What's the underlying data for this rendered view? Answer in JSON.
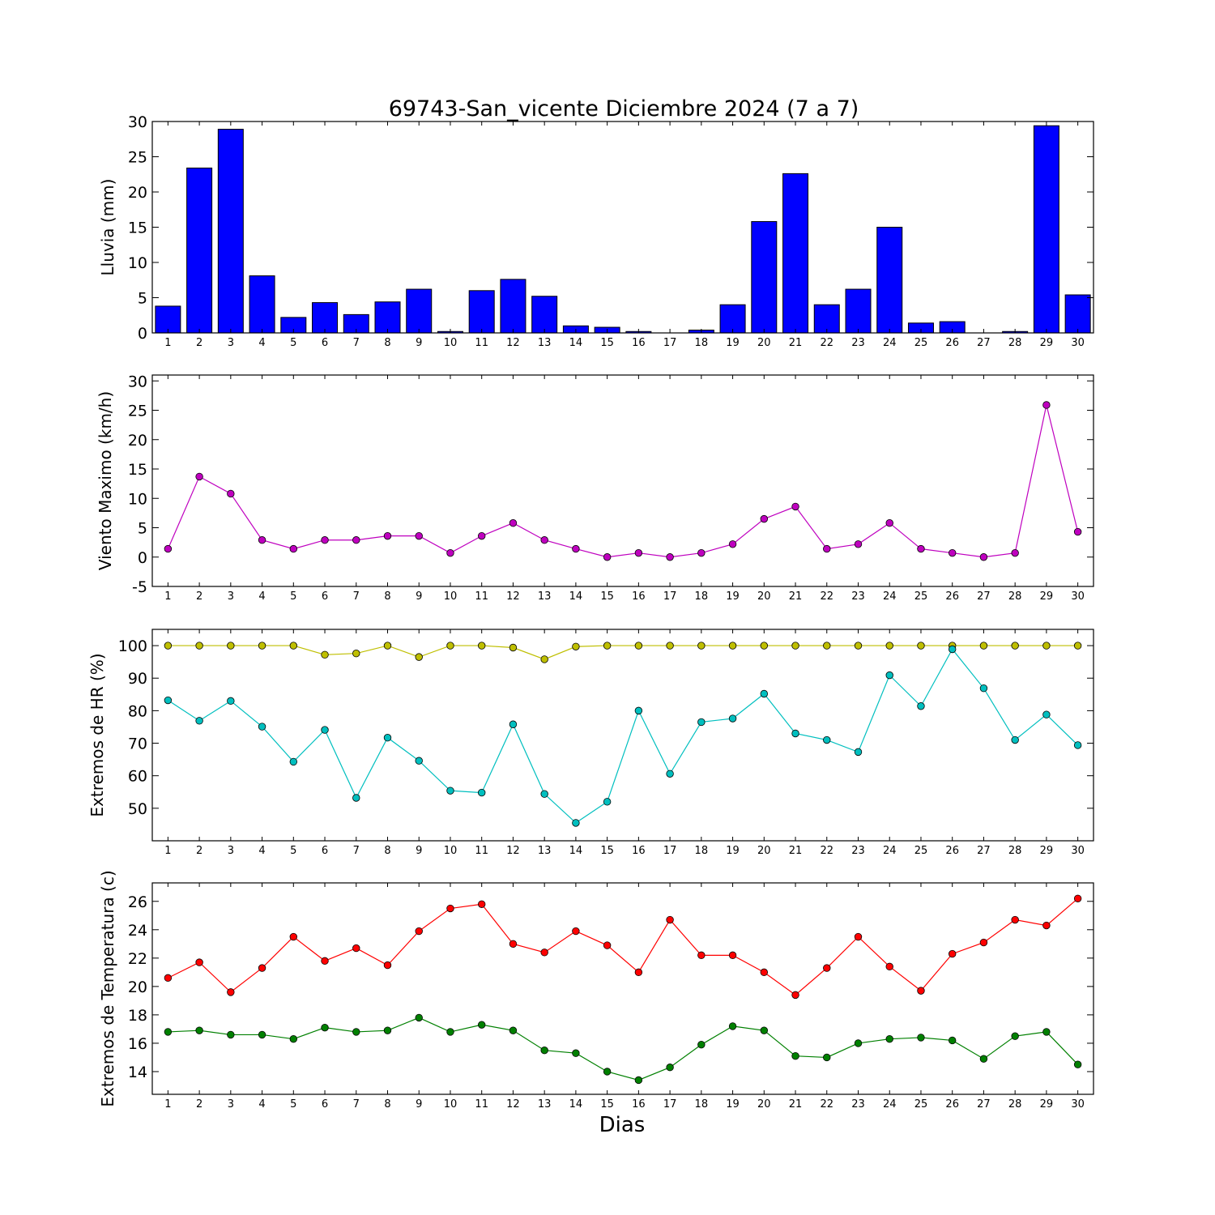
{
  "chart_data": {
    "title": "69743-San_vicente Diciembre 2024  (7 a 7)",
    "xlabel": "Dias",
    "days": [
      1,
      2,
      3,
      4,
      5,
      6,
      7,
      8,
      9,
      10,
      11,
      12,
      13,
      14,
      15,
      16,
      17,
      18,
      19,
      20,
      21,
      22,
      23,
      24,
      25,
      26,
      27,
      28,
      29,
      30
    ],
    "panels": [
      {
        "type": "bar",
        "ylabel": "Lluvia (mm)",
        "ylim": [
          0,
          30
        ],
        "yticks": [
          0,
          5,
          10,
          15,
          20,
          25,
          30
        ],
        "series": [
          {
            "color": "#0000ff",
            "values": [
              3.8,
              23.4,
              28.9,
              8.1,
              2.2,
              4.3,
              2.6,
              4.4,
              6.2,
              0.2,
              6.0,
              7.6,
              5.2,
              1.0,
              0.8,
              0.2,
              0.0,
              0.4,
              4.0,
              15.8,
              22.6,
              4.0,
              6.2,
              15.0,
              1.4,
              1.6,
              0.0,
              0.2,
              29.4,
              5.4
            ]
          }
        ]
      },
      {
        "type": "line",
        "ylabel": "Viento Maximo (km/h)",
        "ylim": [
          -5,
          31
        ],
        "yticks": [
          -5,
          0,
          5,
          10,
          15,
          20,
          25,
          30
        ],
        "series": [
          {
            "color": "#bf00bf",
            "values": [
              1.4,
              13.7,
              10.8,
              2.9,
              1.4,
              2.9,
              2.9,
              3.6,
              3.6,
              0.7,
              3.6,
              5.8,
              2.9,
              1.4,
              0.0,
              0.7,
              0.0,
              0.7,
              2.2,
              6.5,
              8.6,
              1.4,
              2.2,
              5.8,
              1.4,
              0.7,
              0.0,
              0.7,
              25.9,
              4.3
            ]
          }
        ]
      },
      {
        "type": "line",
        "ylabel": "Extremos de HR (%)",
        "ylim": [
          40,
          105
        ],
        "yticks": [
          50,
          60,
          70,
          80,
          90,
          100
        ],
        "series": [
          {
            "color": "#bfbf00",
            "values": [
              100,
              100,
              100,
              100,
              100,
              97.2,
              97.6,
              100,
              96.5,
              100,
              100,
              99.4,
              95.8,
              99.7,
              100,
              100,
              100,
              100,
              100,
              100,
              100,
              100,
              100,
              100,
              100,
              100,
              100,
              100,
              100,
              100
            ]
          },
          {
            "color": "#00bfbf",
            "values": [
              83.2,
              76.9,
              83.0,
              75.1,
              64.3,
              74.1,
              53.2,
              71.7,
              64.6,
              55.4,
              54.8,
              75.8,
              54.4,
              45.5,
              52.0,
              80.0,
              60.6,
              76.5,
              77.6,
              85.2,
              73.0,
              71.0,
              67.3,
              90.9,
              81.4,
              98.9,
              86.9,
              71.0,
              78.8,
              69.4
            ]
          }
        ]
      },
      {
        "type": "line",
        "ylabel": "Extremos de Temperatura (c)",
        "ylim": [
          12.4,
          27.3
        ],
        "yticks": [
          14,
          16,
          18,
          20,
          22,
          24,
          26
        ],
        "series": [
          {
            "color": "#ff0000",
            "values": [
              20.6,
              21.7,
              19.6,
              21.3,
              23.5,
              21.8,
              22.7,
              21.5,
              23.9,
              25.5,
              25.8,
              23.0,
              22.4,
              23.9,
              22.9,
              21.0,
              24.7,
              22.2,
              22.2,
              21.0,
              19.4,
              21.3,
              23.5,
              21.4,
              19.7,
              22.3,
              23.1,
              24.7,
              24.3,
              26.2
            ]
          },
          {
            "color": "#008000",
            "values": [
              16.8,
              16.9,
              16.6,
              16.6,
              16.3,
              17.1,
              16.8,
              16.9,
              17.8,
              16.8,
              17.3,
              16.9,
              15.5,
              15.3,
              14.0,
              13.4,
              14.3,
              15.9,
              17.2,
              16.9,
              15.1,
              15.0,
              16.0,
              16.3,
              16.4,
              16.2,
              14.9,
              16.5,
              16.8,
              14.5
            ]
          }
        ]
      }
    ]
  }
}
